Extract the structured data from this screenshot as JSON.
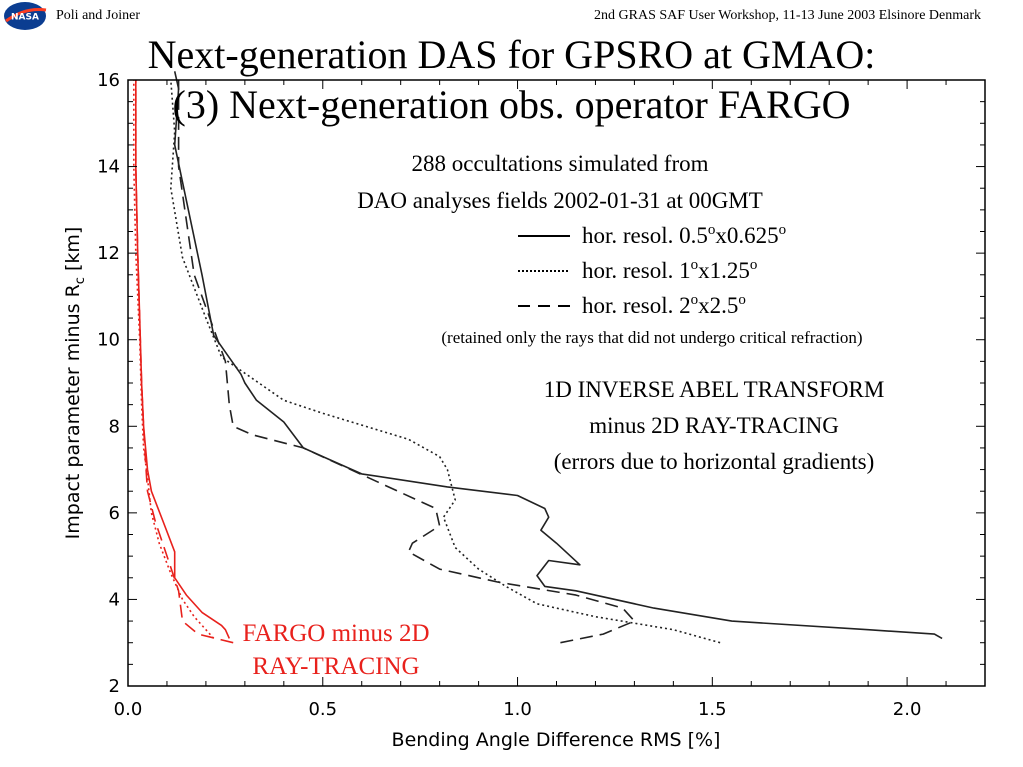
{
  "header": {
    "left": "Poli and Joiner",
    "right": "2nd GRAS SAF User Workshop, 11-13 June 2003 Elsinore Denmark",
    "logo_text": "NASA"
  },
  "title": {
    "line1": "Next-generation DAS for GPSRO at GMAO:",
    "line2": "(3) Next-generation obs. operator FARGO"
  },
  "annotations": {
    "subtitle1": "288 occultations simulated from",
    "subtitle2": "DAO analyses fields 2002-01-31 at 00GMT",
    "note": "(retained only the rays that did not undergo critical refraction)",
    "method1": "1D INVERSE ABEL TRANSFORM",
    "method2": "minus 2D RAY-TRACING",
    "method3": "(errors due to horizontal gradients)",
    "fargo1": "FARGO minus 2D",
    "fargo2": "RAY-TRACING"
  },
  "colors": {
    "abel": "#222222",
    "fargo": "#e8211c",
    "fargo_text": "#e8211c"
  },
  "chart_data": {
    "type": "line",
    "xlabel": "Bending Angle Difference RMS [%]",
    "ylabel": "Impact parameter minus R",
    "ylabel_sub": "c",
    "ylabel_unit": "[km]",
    "xlim": [
      0.0,
      2.2
    ],
    "ylim": [
      2,
      16
    ],
    "xticks": [
      0.0,
      0.5,
      1.0,
      1.5,
      2.0
    ],
    "xtick_labels": [
      "0.0",
      "0.5",
      "1.0",
      "1.5",
      "2.0"
    ],
    "yticks": [
      2,
      4,
      6,
      8,
      10,
      12,
      14,
      16
    ],
    "ytick_labels": [
      "2",
      "4",
      "6",
      "8",
      "10",
      "12",
      "14",
      "16"
    ],
    "legend": {
      "placement": "top-right",
      "entries": [
        {
          "style": "solid",
          "label_main": "hor. resol. 0.5",
          "sup1": "o",
          "label_mid": "x0.625",
          "sup2": "o"
        },
        {
          "style": "dotted",
          "label_main": "hor. resol. 1",
          "sup1": "o",
          "label_mid": "x1.25",
          "sup2": "o"
        },
        {
          "style": "dashed",
          "label_main": "hor. resol. 2",
          "sup1": "o",
          "label_mid": "x2.5",
          "sup2": "o"
        }
      ]
    },
    "series": [
      {
        "group": "abel",
        "style": "solid",
        "x": [
          2.09,
          2.07,
          1.9,
          1.55,
          1.35,
          1.15,
          1.07,
          1.05,
          1.08,
          1.16,
          1.1,
          1.06,
          1.08,
          1.07,
          1.0,
          0.82,
          0.6,
          0.5,
          0.45,
          0.4,
          0.33,
          0.3,
          0.29,
          0.22,
          0.19,
          0.12,
          0.13,
          0.12
        ],
        "y": [
          3.1,
          3.2,
          3.3,
          3.5,
          3.8,
          4.2,
          4.3,
          4.55,
          4.9,
          4.8,
          5.3,
          5.6,
          5.9,
          6.1,
          6.4,
          6.6,
          6.9,
          7.3,
          7.5,
          8.1,
          8.6,
          9.0,
          9.2,
          10.1,
          11.5,
          14.5,
          15.8,
          16.2
        ]
      },
      {
        "group": "abel",
        "style": "dotted",
        "x": [
          1.52,
          1.4,
          1.2,
          1.05,
          0.97,
          0.9,
          0.84,
          0.81,
          0.84,
          0.82,
          0.8,
          0.72,
          0.5,
          0.4,
          0.24,
          0.2,
          0.14,
          0.11,
          0.12,
          0.11
        ],
        "y": [
          3.0,
          3.3,
          3.6,
          3.9,
          4.3,
          4.7,
          5.2,
          5.9,
          6.3,
          7.0,
          7.3,
          7.7,
          8.3,
          8.6,
          9.6,
          10.5,
          11.9,
          13.5,
          14.8,
          16.0
        ]
      },
      {
        "group": "abel",
        "style": "dashed",
        "x": [
          1.11,
          1.22,
          1.3,
          1.27,
          1.15,
          0.95,
          0.8,
          0.72,
          0.73,
          0.8,
          0.79,
          0.62,
          0.45,
          0.32,
          0.27,
          0.26,
          0.25,
          0.17,
          0.13,
          0.13
        ],
        "y": [
          3.0,
          3.2,
          3.5,
          3.8,
          4.1,
          4.4,
          4.7,
          5.1,
          5.3,
          5.7,
          6.1,
          6.8,
          7.5,
          7.8,
          8.0,
          8.5,
          9.5,
          11.5,
          14.0,
          16.0
        ]
      },
      {
        "group": "fargo",
        "style": "solid",
        "x": [
          0.26,
          0.25,
          0.24,
          0.19,
          0.15,
          0.12,
          0.12,
          0.09,
          0.06,
          0.05,
          0.04,
          0.035,
          0.03,
          0.025,
          0.02,
          0.02
        ],
        "y": [
          3.1,
          3.3,
          3.4,
          3.7,
          4.1,
          4.5,
          5.1,
          5.8,
          6.5,
          7.0,
          8.0,
          9.0,
          10.5,
          12.0,
          14.0,
          16.0
        ]
      },
      {
        "group": "fargo",
        "style": "dotted",
        "x": [
          0.22,
          0.2,
          0.17,
          0.14,
          0.11,
          0.08,
          0.06,
          0.05,
          0.04,
          0.035,
          0.03,
          0.02,
          0.015,
          0.015
        ],
        "y": [
          3.1,
          3.3,
          3.6,
          4.0,
          4.6,
          5.3,
          6.0,
          6.8,
          7.5,
          8.5,
          10.0,
          12.0,
          14.0,
          16.0
        ]
      },
      {
        "group": "fargo",
        "style": "dashed",
        "x": [
          0.27,
          0.18,
          0.14,
          0.13,
          0.1,
          0.07,
          0.05,
          0.045,
          0.04,
          0.035,
          0.03,
          0.025,
          0.02,
          0.02
        ],
        "y": [
          3.0,
          3.2,
          3.5,
          4.2,
          5.0,
          5.8,
          6.5,
          7.2,
          8.0,
          9.0,
          10.5,
          12.0,
          14.0,
          16.0
        ]
      }
    ]
  }
}
